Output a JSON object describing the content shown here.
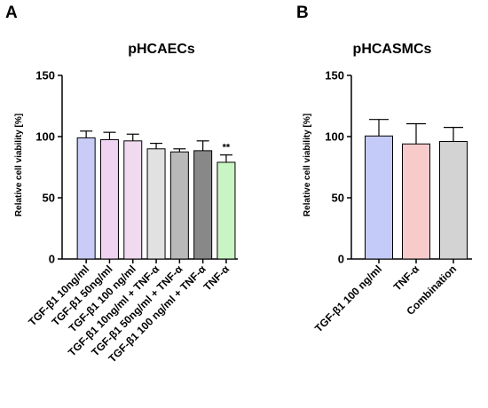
{
  "chart_data": [
    {
      "panel": "A",
      "type": "bar",
      "title": "pHCAECs",
      "xlabel": "",
      "ylabel": "Relative cell viability [%]",
      "ylim": [
        0,
        150
      ],
      "yticks": [
        0,
        50,
        100,
        150
      ],
      "categories": [
        "TGF-β1 10ng/ml",
        "TGF-β1 50ng/ml",
        "TGF-β1 100 ng/ml",
        "TGF-β1 10ng/ml + TNF-α",
        "TGF-β1 50ng/ml + TNF-α",
        "TGF-β1 100 ng/ml + TNF-α",
        "TNF-α"
      ],
      "values": [
        99,
        97.5,
        96.5,
        90,
        87.5,
        88.5,
        79
      ],
      "errors": [
        5.5,
        6,
        5.5,
        4.5,
        2.5,
        8,
        6
      ],
      "colors": [
        "#c8ccf6",
        "#f0d3f3",
        "#f1d9ef",
        "#e1e1e1",
        "#b9b9b9",
        "#888888",
        "#c9f5c5"
      ],
      "annotations": [
        {
          "index": 6,
          "text": "**"
        }
      ],
      "grid": false
    },
    {
      "panel": "B",
      "type": "bar",
      "title": "pHCASMCs",
      "xlabel": "",
      "ylabel": "Relative cell viability [%]",
      "ylim": [
        0,
        150
      ],
      "yticks": [
        0,
        50,
        100,
        150
      ],
      "categories": [
        "TGF-β1 100 ng/ml",
        "TNF-α",
        "Combination"
      ],
      "values": [
        100.5,
        94,
        96
      ],
      "errors": [
        13.5,
        16.5,
        11.5
      ],
      "colors": [
        "#c5cbf8",
        "#f8cbcb",
        "#d3d3d3"
      ],
      "annotations": [],
      "grid": false
    }
  ]
}
